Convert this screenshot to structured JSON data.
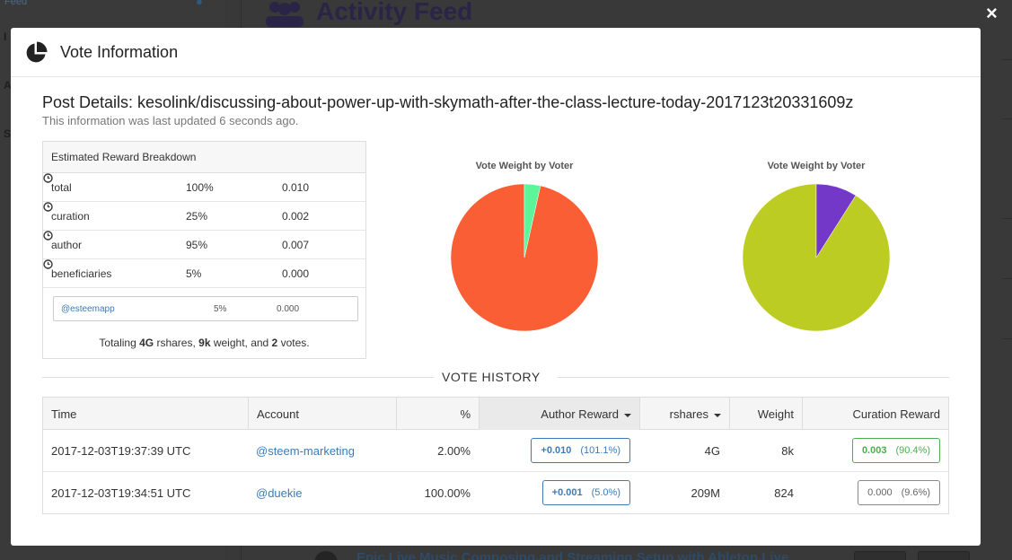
{
  "background": {
    "sidebar_link": "Feed",
    "page_title": "Activity Feed",
    "bottom_link": "Epic Live Music Composing and Streaming Setup with Ableton Live"
  },
  "modal": {
    "title": "Vote Information",
    "icon": "pie-chart-icon",
    "close_label": "×"
  },
  "post": {
    "details": "Post Details: kesolink/discussing-about-power-up-with-skymath-after-the-class-lecture-today-2017123t20331609z",
    "updated": "This information was last updated 6 seconds ago."
  },
  "reward": {
    "header": "Estimated Reward Breakdown",
    "rows": [
      {
        "label": "total",
        "pct": "100%",
        "value": "0.010"
      },
      {
        "label": "curation",
        "pct": "25%",
        "value": "0.002"
      },
      {
        "label": "author",
        "pct": "95%",
        "value": "0.007"
      },
      {
        "label": "beneficiaries",
        "pct": "5%",
        "value": "0.000"
      }
    ],
    "beneficiary": {
      "account": "@esteemapp",
      "pct": "5%",
      "value": "0.000"
    },
    "totaling": {
      "prefix": "Totaling ",
      "rshares": "4G",
      "mid1": " rshares, ",
      "weight": "9k",
      "mid2": " weight, and ",
      "votes": "2",
      "suffix": " votes."
    }
  },
  "chart_data": [
    {
      "type": "pie",
      "title": "Vote Weight by Voter",
      "values": [
        96.5,
        3.5
      ],
      "colors": [
        "#f95e34",
        "#5cf59a"
      ]
    },
    {
      "type": "pie",
      "title": "Vote Weight by Voter",
      "values": [
        91.0,
        9.0
      ],
      "colors": [
        "#bccc22",
        "#7338c8"
      ]
    }
  ],
  "vote_history": {
    "label": "VOTE HISTORY",
    "columns": {
      "time": "Time",
      "account": "Account",
      "pct": "%",
      "author_reward": "Author Reward",
      "rshares": "rshares",
      "weight": "Weight",
      "curation_reward": "Curation Reward"
    },
    "rows": [
      {
        "time": "2017-12-03T19:37:39 UTC",
        "account": "@steem-marketing",
        "pct": "2.00%",
        "author_reward": "+0.010",
        "author_reward_pct": "(101.1%)",
        "rshares": "4G",
        "weight": "8k",
        "curation_reward": "0.003",
        "curation_reward_pct": "(90.4%)"
      },
      {
        "time": "2017-12-03T19:34:51 UTC",
        "account": "@duekie",
        "pct": "100.00%",
        "author_reward": "+0.001",
        "author_reward_pct": "(5.0%)",
        "rshares": "209M",
        "weight": "824",
        "curation_reward": "0.000",
        "curation_reward_pct": "(9.6%)"
      }
    ]
  }
}
